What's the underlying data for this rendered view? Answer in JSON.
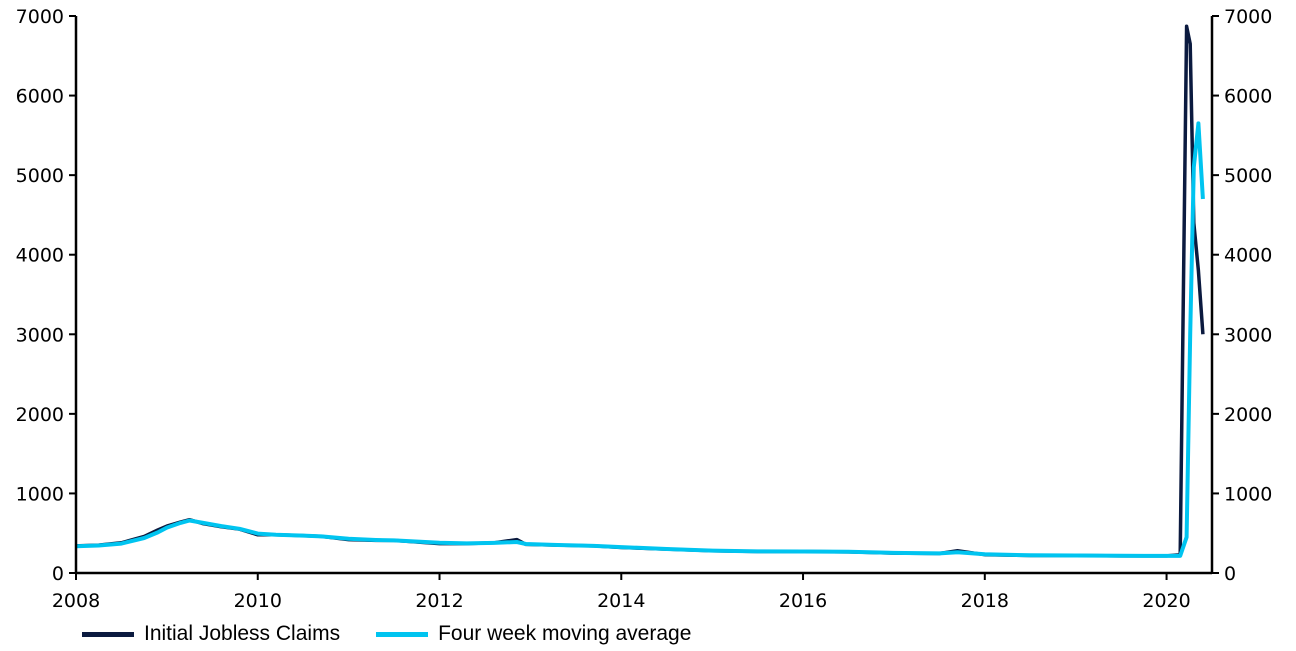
{
  "chart_data": {
    "type": "line",
    "title": "",
    "xlabel": "",
    "ylabel": "",
    "xlim": [
      2008,
      2020.5
    ],
    "ylim": [
      0,
      7000
    ],
    "y_ticks": [
      0,
      1000,
      2000,
      3000,
      4000,
      5000,
      6000,
      7000
    ],
    "x_ticks": [
      2008,
      2010,
      2012,
      2014,
      2016,
      2018,
      2020
    ],
    "y_tick_labels": [
      "0",
      "1000",
      "2000",
      "3000",
      "4000",
      "5000",
      "6000",
      "7000"
    ],
    "y2_tick_labels": [
      "0",
      "1000",
      "2000",
      "3000",
      "4000",
      "5000",
      "6000",
      "7000"
    ],
    "x_tick_labels": [
      "2008",
      "2010",
      "2012",
      "2014",
      "2016",
      "2018",
      "2020"
    ],
    "grid": false,
    "legend_position": "bottom-left",
    "series": [
      {
        "name": "Initial Jobless Claims",
        "color": "#0b1a3f",
        "x": [
          2008.0,
          2008.25,
          2008.5,
          2008.75,
          2008.9,
          2009.0,
          2009.15,
          2009.25,
          2009.4,
          2009.6,
          2009.8,
          2010.0,
          2010.2,
          2010.5,
          2010.7,
          2011.0,
          2011.3,
          2011.5,
          2012.0,
          2012.3,
          2012.6,
          2012.85,
          2012.95,
          2013.3,
          2013.7,
          2014.0,
          2014.5,
          2015.0,
          2015.5,
          2016.0,
          2016.5,
          2017.0,
          2017.5,
          2017.7,
          2018.0,
          2018.5,
          2019.0,
          2019.5,
          2020.0,
          2020.15,
          2020.22,
          2020.26,
          2020.3,
          2020.35,
          2020.4
        ],
        "values": [
          340,
          350,
          380,
          460,
          540,
          590,
          640,
          670,
          620,
          580,
          550,
          480,
          480,
          470,
          460,
          420,
          410,
          410,
          370,
          370,
          380,
          420,
          360,
          350,
          340,
          320,
          300,
          280,
          270,
          270,
          265,
          250,
          245,
          280,
          230,
          220,
          220,
          215,
          215,
          230,
          6870,
          6650,
          4400,
          3800,
          3000
        ]
      },
      {
        "name": "Four week moving average",
        "color": "#00c4f0",
        "x": [
          2008.0,
          2008.25,
          2008.5,
          2008.75,
          2008.9,
          2009.0,
          2009.15,
          2009.25,
          2009.4,
          2009.6,
          2009.8,
          2010.0,
          2010.2,
          2010.5,
          2010.7,
          2011.0,
          2011.3,
          2011.5,
          2012.0,
          2012.3,
          2012.6,
          2012.85,
          2012.95,
          2013.3,
          2013.7,
          2014.0,
          2014.5,
          2015.0,
          2015.5,
          2016.0,
          2016.5,
          2017.0,
          2017.5,
          2017.7,
          2018.0,
          2018.5,
          2019.0,
          2019.5,
          2020.0,
          2020.15,
          2020.22,
          2020.26,
          2020.3,
          2020.35,
          2020.4
        ],
        "values": [
          335,
          345,
          370,
          440,
          510,
          570,
          630,
          660,
          630,
          590,
          555,
          495,
          480,
          470,
          460,
          430,
          415,
          410,
          380,
          372,
          378,
          390,
          365,
          352,
          340,
          325,
          302,
          282,
          272,
          270,
          266,
          252,
          246,
          260,
          235,
          222,
          220,
          216,
          215,
          215,
          450,
          3000,
          5100,
          5650,
          4700
        ]
      }
    ]
  }
}
